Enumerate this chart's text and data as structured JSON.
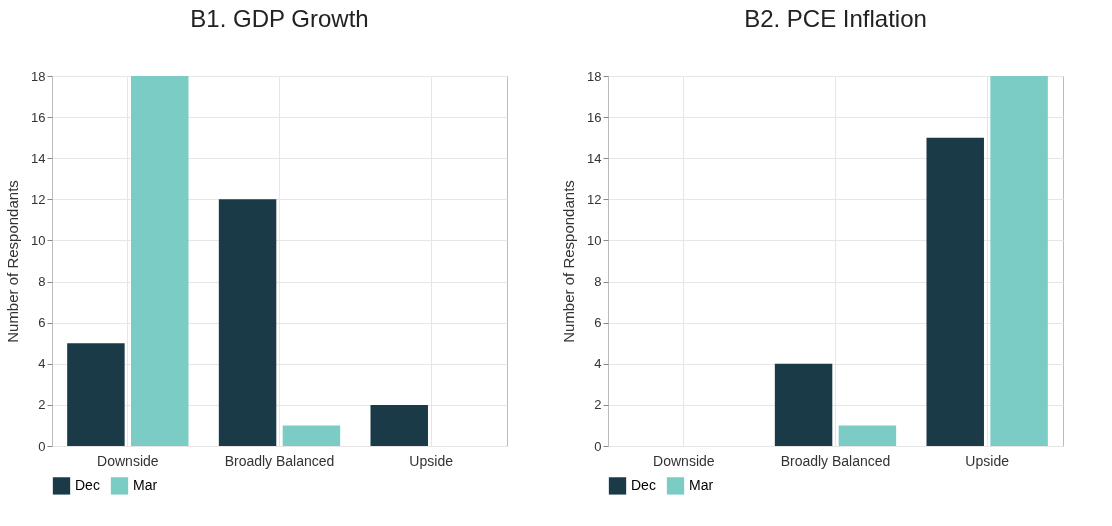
{
  "chart_data": [
    {
      "type": "bar",
      "title": "B1. GDP Growth",
      "ylabel": "Number of Respondants",
      "categories": [
        "Downside",
        "Broadly Balanced",
        "Upside"
      ],
      "series": [
        {
          "name": "Dec",
          "color": "#1b3a47",
          "values": [
            5,
            12,
            2
          ]
        },
        {
          "name": "Mar",
          "color": "#7accc4",
          "values": [
            18,
            1,
            0
          ]
        }
      ],
      "ylim": [
        0,
        18
      ],
      "yticks": [
        0,
        2,
        4,
        6,
        8,
        10,
        12,
        14,
        16,
        18
      ],
      "grid": true,
      "legend": "bottom"
    },
    {
      "type": "bar",
      "title": "B2. PCE Inflation",
      "ylabel": "Number of Respondants",
      "categories": [
        "Downside",
        "Broadly Balanced",
        "Upside"
      ],
      "series": [
        {
          "name": "Dec",
          "color": "#1b3a47",
          "values": [
            0,
            4,
            15
          ]
        },
        {
          "name": "Mar",
          "color": "#7accc4",
          "values": [
            0,
            1,
            18
          ]
        }
      ],
      "ylim": [
        0,
        18
      ],
      "yticks": [
        0,
        2,
        4,
        6,
        8,
        10,
        12,
        14,
        16,
        18
      ],
      "grid": true,
      "legend": "bottom"
    }
  ]
}
